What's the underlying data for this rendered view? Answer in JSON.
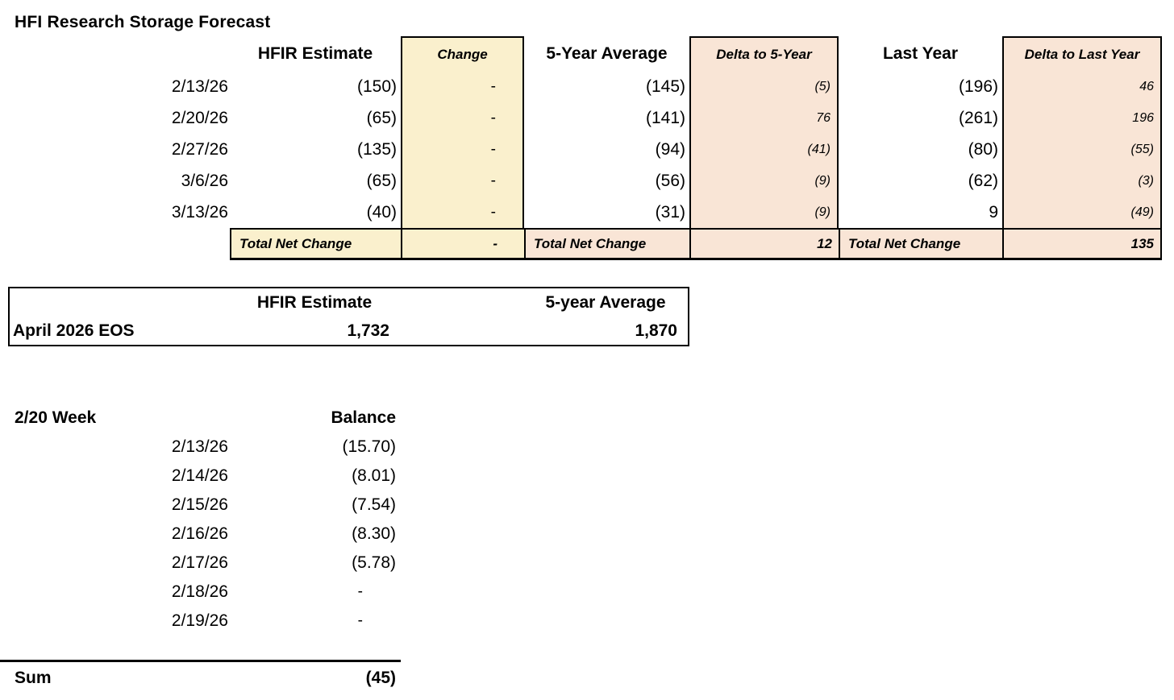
{
  "title": "HFI Research Storage Forecast",
  "colors": {
    "highlight_yellow": "#FAF0CD",
    "highlight_peach": "#F9E5D6",
    "border": "#000000"
  },
  "forecast_table": {
    "headers": {
      "estimate": "HFIR Estimate",
      "change": "Change",
      "five_year_avg": "5-Year Average",
      "delta_five_year": "Delta to 5-Year",
      "last_year": "Last Year",
      "delta_last_year": "Delta to Last Year"
    },
    "rows": [
      {
        "date": "2/13/26",
        "estimate": "(150)",
        "change": "-",
        "five_year_avg": "(145)",
        "delta_five_year": "(5)",
        "last_year": "(196)",
        "delta_last_year": "46"
      },
      {
        "date": "2/20/26",
        "estimate": "(65)",
        "change": "-",
        "five_year_avg": "(141)",
        "delta_five_year": "76",
        "last_year": "(261)",
        "delta_last_year": "196"
      },
      {
        "date": "2/27/26",
        "estimate": "(135)",
        "change": "-",
        "five_year_avg": "(94)",
        "delta_five_year": "(41)",
        "last_year": "(80)",
        "delta_last_year": "(55)"
      },
      {
        "date": "3/6/26",
        "estimate": "(65)",
        "change": "-",
        "five_year_avg": "(56)",
        "delta_five_year": "(9)",
        "last_year": "(62)",
        "delta_last_year": "(3)"
      },
      {
        "date": "3/13/26",
        "estimate": "(40)",
        "change": "-",
        "five_year_avg": "(31)",
        "delta_five_year": "(9)",
        "last_year": "9",
        "delta_last_year": "(49)"
      }
    ],
    "total_row": {
      "label_estimate": "Total Net Change",
      "change": "-",
      "label_five_year": "Total Net Change",
      "delta_five_year": "12",
      "label_last_year": "Total Net Change",
      "delta_last_year": "135"
    }
  },
  "eos_table": {
    "headers": {
      "estimate": "HFIR Estimate",
      "five_year_avg": "5-year Average"
    },
    "row_label": "April 2026 EOS",
    "estimate_value": "1,732",
    "five_year_avg_value": "1,870"
  },
  "week_table": {
    "title": "2/20 Week",
    "balance_header": "Balance",
    "rows": [
      {
        "date": "2/13/26",
        "balance": "(15.70)"
      },
      {
        "date": "2/14/26",
        "balance": "(8.01)"
      },
      {
        "date": "2/15/26",
        "balance": "(7.54)"
      },
      {
        "date": "2/16/26",
        "balance": "(8.30)"
      },
      {
        "date": "2/17/26",
        "balance": "(5.78)"
      },
      {
        "date": "2/18/26",
        "balance": "-"
      },
      {
        "date": "2/19/26",
        "balance": "-"
      }
    ],
    "sum_label": "Sum",
    "sum_value": "(45)"
  }
}
